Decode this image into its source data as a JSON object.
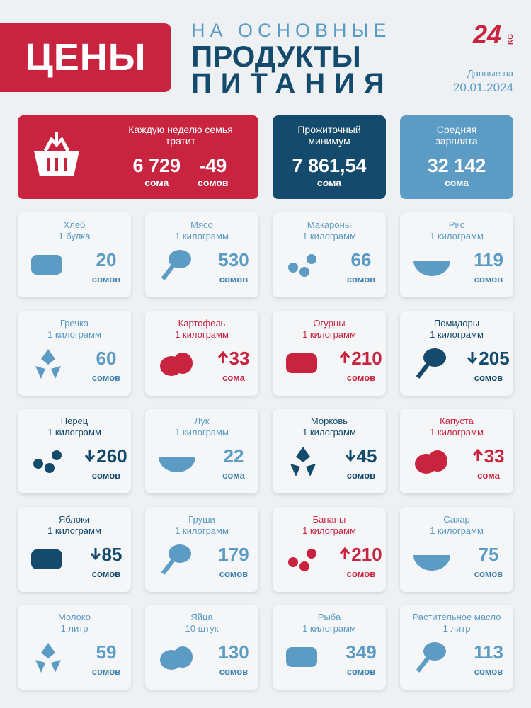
{
  "header": {
    "badge": "ЦЕНЫ",
    "title_lines": [
      "НА ОСНОВНЫЕ",
      "ПРОДУКТЫ",
      "ПИТАНИЯ"
    ],
    "logo": "24",
    "logo_suffix": "KG",
    "date_label": "Данные на",
    "date": "20.01.2024"
  },
  "summary": [
    {
      "title": "Каждую неделю семья тратит",
      "tone": "red",
      "figures": [
        {
          "value": "6 729",
          "currency": "сома"
        },
        {
          "value": "-49",
          "currency": "сомов"
        }
      ]
    },
    {
      "title": "Прожиточный минимум",
      "tone": "dark",
      "figures": [
        {
          "value": "7 861,54",
          "currency": "сома"
        }
      ]
    },
    {
      "title": "Средняя зарплата",
      "tone": "light",
      "figures": [
        {
          "value": "32 142",
          "currency": "сома"
        }
      ]
    }
  ],
  "items": [
    {
      "name": "Хлеб",
      "unit": "1 булка",
      "value": "20",
      "currency": "сомов",
      "trend": "none"
    },
    {
      "name": "Мясо",
      "unit": "1 килограмм",
      "value": "530",
      "currency": "сомов",
      "trend": "none"
    },
    {
      "name": "Макароны",
      "unit": "1 килограмм",
      "value": "66",
      "currency": "сомов",
      "trend": "none"
    },
    {
      "name": "Рис",
      "unit": "1 килограмм",
      "value": "119",
      "currency": "сомов",
      "trend": "none"
    },
    {
      "name": "Гречка",
      "unit": "1 килограмм",
      "value": "60",
      "currency": "сомов",
      "trend": "none"
    },
    {
      "name": "Картофель",
      "unit": "1 килограмм",
      "value": "33",
      "currency": "сома",
      "trend": "up"
    },
    {
      "name": "Огурцы",
      "unit": "1 килограмм",
      "value": "210",
      "currency": "сомов",
      "trend": "up"
    },
    {
      "name": "Помидоры",
      "unit": "1 килограмм",
      "value": "205",
      "currency": "сомов",
      "trend": "down"
    },
    {
      "name": "Перец",
      "unit": "1 килограмм",
      "value": "260",
      "currency": "сомов",
      "trend": "down"
    },
    {
      "name": "Лук",
      "unit": "1 килограмм",
      "value": "22",
      "currency": "сома",
      "trend": "none"
    },
    {
      "name": "Морковь",
      "unit": "1 килограмм",
      "value": "45",
      "currency": "сомов",
      "trend": "down"
    },
    {
      "name": "Капуста",
      "unit": "1 килограмм",
      "value": "33",
      "currency": "сома",
      "trend": "up"
    },
    {
      "name": "Яблоки",
      "unit": "1 килограмм",
      "value": "85",
      "currency": "сомов",
      "trend": "down"
    },
    {
      "name": "Груши",
      "unit": "1 килограмм",
      "value": "179",
      "currency": "сомов",
      "trend": "none"
    },
    {
      "name": "Бананы",
      "unit": "1 килограмм",
      "value": "210",
      "currency": "сомов",
      "trend": "up"
    },
    {
      "name": "Сахар",
      "unit": "1 килограмм",
      "value": "75",
      "currency": "сомов",
      "trend": "none"
    },
    {
      "name": "Молоко",
      "unit": "1 литр",
      "value": "59",
      "currency": "сомов",
      "trend": "none"
    },
    {
      "name": "Яйца",
      "unit": "10 штук",
      "value": "130",
      "currency": "сомов",
      "trend": "none"
    },
    {
      "name": "Рыба",
      "unit": "1 килограмм",
      "value": "349",
      "currency": "сомов",
      "trend": "none"
    },
    {
      "name": "Растительное масло",
      "unit": "1 литр",
      "value": "113",
      "currency": "сомов",
      "trend": "none"
    }
  ]
}
